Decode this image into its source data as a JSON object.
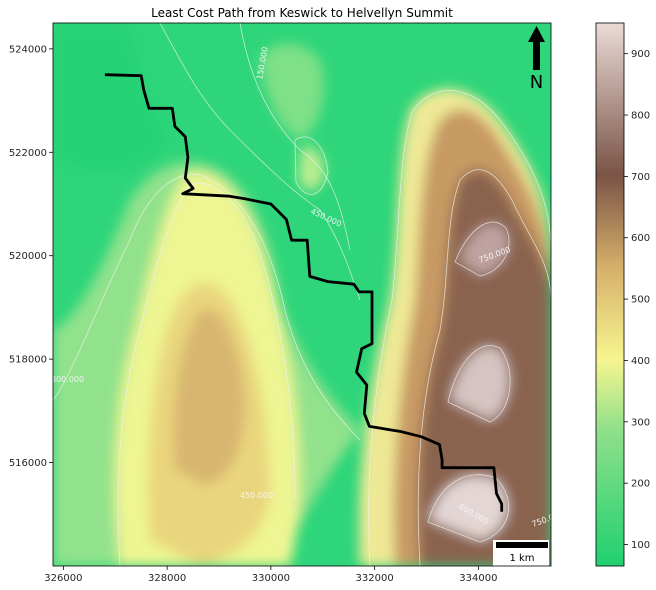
{
  "title": "Least Cost Path from Keswick to Helvellyn Summit",
  "north_arrow": {
    "label": "N"
  },
  "scale_bar": {
    "label": "1 km"
  },
  "contour_labels": [
    "150.000",
    "450.000",
    "750.000",
    "750.000",
    "450.000",
    "450.000",
    "600.000",
    "750.000",
    "300.000"
  ],
  "chart_data": {
    "type": "heatmap",
    "title": "Least Cost Path from Keswick to Helvellyn Summit",
    "xlim": [
      325800,
      335400
    ],
    "ylim": [
      514000,
      524500
    ],
    "x_ticks": [
      "326000",
      "328000",
      "330000",
      "332000",
      "334000"
    ],
    "y_ticks": [
      "516000",
      "518000",
      "520000",
      "522000",
      "524000"
    ],
    "x_tick_values": [
      326000,
      328000,
      330000,
      332000,
      334000
    ],
    "y_tick_values": [
      516000,
      518000,
      520000,
      522000,
      524000
    ],
    "colorbar": {
      "range": [
        65,
        950
      ],
      "ticks": [
        "100",
        "200",
        "300",
        "400",
        "500",
        "600",
        "700",
        "800",
        "900"
      ],
      "tick_values": [
        100,
        200,
        300,
        400,
        500,
        600,
        700,
        800,
        900
      ],
      "colors": [
        "#20d070",
        "#8fe08a",
        "#f7f590",
        "#d6b06a",
        "#7a5446",
        "#eadad6"
      ]
    },
    "path": {
      "color": "#000000",
      "points": [
        [
          326800,
          523500
        ],
        [
          327500,
          523480
        ],
        [
          327550,
          523200
        ],
        [
          327650,
          522850
        ],
        [
          328100,
          522850
        ],
        [
          328150,
          522500
        ],
        [
          328350,
          522300
        ],
        [
          328400,
          521900
        ],
        [
          328350,
          521500
        ],
        [
          328500,
          521300
        ],
        [
          328300,
          521200
        ],
        [
          329200,
          521150
        ],
        [
          329500,
          521100
        ],
        [
          330000,
          521000
        ],
        [
          330300,
          520700
        ],
        [
          330400,
          520300
        ],
        [
          330700,
          520300
        ],
        [
          330750,
          519600
        ],
        [
          331100,
          519500
        ],
        [
          331600,
          519450
        ],
        [
          331700,
          519300
        ],
        [
          331950,
          519300
        ],
        [
          331950,
          518300
        ],
        [
          331750,
          518200
        ],
        [
          331650,
          517750
        ],
        [
          331850,
          517500
        ],
        [
          331800,
          516950
        ],
        [
          331900,
          516700
        ],
        [
          332500,
          516600
        ],
        [
          332900,
          516500
        ],
        [
          333250,
          516350
        ],
        [
          333300,
          516050
        ],
        [
          333300,
          515900
        ],
        [
          334300,
          515900
        ],
        [
          334350,
          515400
        ],
        [
          334450,
          515200
        ],
        [
          334450,
          515050
        ]
      ]
    },
    "contour_interval": 150
  }
}
